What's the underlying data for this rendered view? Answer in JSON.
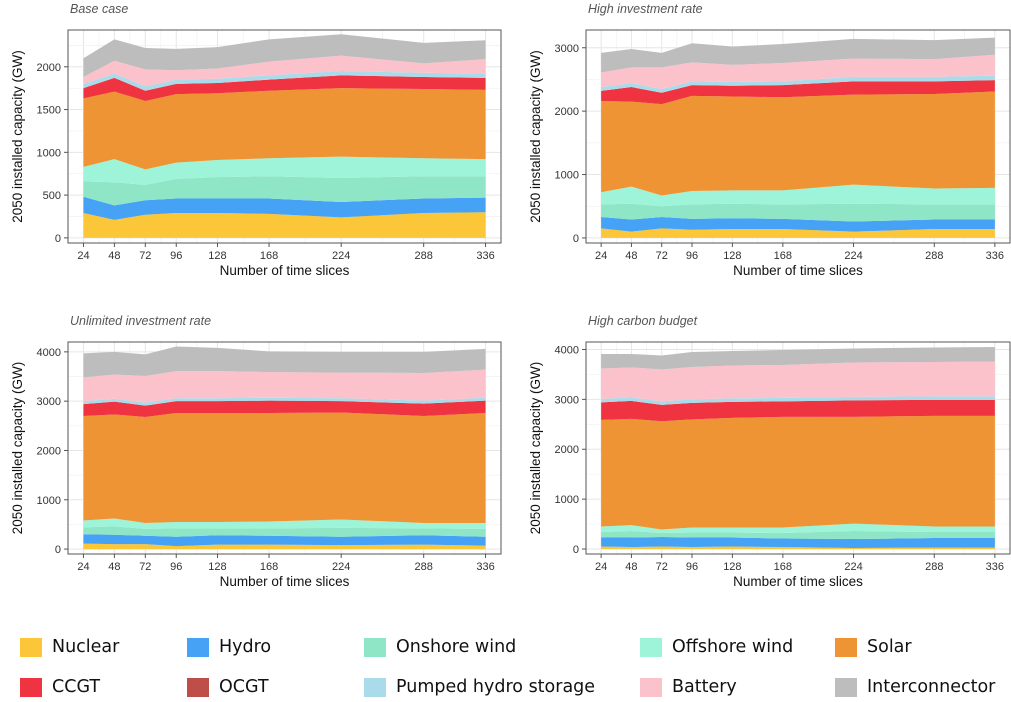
{
  "series_names": [
    "Nuclear",
    "Hydro",
    "Onshore wind",
    "Offshore wind",
    "Solar",
    "CCGT",
    "OCGT",
    "Pumped hydro storage",
    "Battery",
    "Interconnector"
  ],
  "series_colors": [
    "#fbc638",
    "#45a2f5",
    "#8ee6c6",
    "#9df4d8",
    "#ef9434",
    "#ef3340",
    "#bd4e4a",
    "#a9dbea",
    "#fbc2cb",
    "#bdbdbd"
  ],
  "legend": {
    "items": [
      {
        "label": "Nuclear",
        "color": "#fbc638"
      },
      {
        "label": "Hydro",
        "color": "#45a2f5"
      },
      {
        "label": "Onshore wind",
        "color": "#8ee6c6"
      },
      {
        "label": "Offshore wind",
        "color": "#9df4d8"
      },
      {
        "label": "Solar",
        "color": "#ef9434"
      },
      {
        "label": "CCGT",
        "color": "#ef3340"
      },
      {
        "label": "OCGT",
        "color": "#bd4e4a"
      },
      {
        "label": "Pumped hydro storage",
        "color": "#a9dbea"
      },
      {
        "label": "Battery",
        "color": "#fbc2cb"
      },
      {
        "label": "Interconnector",
        "color": "#bdbdbd"
      }
    ]
  },
  "chart_data": [
    {
      "type": "area",
      "title": "Base case",
      "xlabel": "Number of time slices",
      "ylabel": "2050 installed capacity (GW)",
      "x": [
        24,
        48,
        72,
        96,
        128,
        168,
        224,
        288,
        336
      ],
      "xticks": [
        24,
        48,
        72,
        96,
        128,
        168,
        224,
        288,
        336
      ],
      "yticks": [
        0,
        500,
        1000,
        1500,
        2000
      ],
      "ylim": [
        -60,
        2430
      ],
      "grid": true,
      "series": [
        {
          "name": "Nuclear",
          "values": [
            290,
            210,
            270,
            290,
            290,
            280,
            240,
            290,
            300
          ]
        },
        {
          "name": "Hydro",
          "values": [
            190,
            170,
            170,
            170,
            170,
            180,
            180,
            170,
            170
          ]
        },
        {
          "name": "Onshore wind",
          "values": [
            180,
            270,
            180,
            230,
            250,
            260,
            280,
            260,
            250
          ]
        },
        {
          "name": "Offshore wind",
          "values": [
            170,
            270,
            180,
            190,
            200,
            210,
            250,
            210,
            200
          ]
        },
        {
          "name": "Solar",
          "values": [
            800,
            790,
            800,
            800,
            780,
            790,
            800,
            810,
            810
          ]
        },
        {
          "name": "CCGT",
          "values": [
            120,
            160,
            120,
            120,
            120,
            130,
            150,
            140,
            140
          ]
        },
        {
          "name": "OCGT",
          "values": [
            0,
            0,
            0,
            0,
            0,
            0,
            0,
            0,
            0
          ]
        },
        {
          "name": "Pumped hydro storage",
          "values": [
            50,
            50,
            50,
            50,
            50,
            50,
            50,
            50,
            50
          ]
        },
        {
          "name": "Battery",
          "values": [
            80,
            150,
            200,
            110,
            120,
            160,
            180,
            110,
            170
          ]
        },
        {
          "name": "Interconnector",
          "values": [
            220,
            250,
            250,
            250,
            250,
            260,
            250,
            240,
            220
          ]
        }
      ]
    },
    {
      "type": "area",
      "title": "High investment rate",
      "xlabel": "Number of time slices",
      "ylabel": "2050 installed capacity (GW)",
      "x": [
        24,
        48,
        72,
        96,
        128,
        168,
        224,
        288,
        336
      ],
      "xticks": [
        24,
        48,
        72,
        96,
        128,
        168,
        224,
        288,
        336
      ],
      "yticks": [
        0,
        1000,
        2000,
        3000
      ],
      "ylim": [
        -80,
        3280
      ],
      "grid": true,
      "series": [
        {
          "name": "Nuclear",
          "values": [
            150,
            100,
            150,
            130,
            140,
            140,
            100,
            140,
            140
          ]
        },
        {
          "name": "Hydro",
          "values": [
            180,
            190,
            180,
            170,
            170,
            160,
            160,
            150,
            150
          ]
        },
        {
          "name": "Onshore wind",
          "values": [
            200,
            250,
            170,
            230,
            230,
            230,
            280,
            240,
            240
          ]
        },
        {
          "name": "Offshore wind",
          "values": [
            190,
            270,
            170,
            210,
            210,
            220,
            300,
            250,
            260
          ]
        },
        {
          "name": "Solar",
          "values": [
            1440,
            1340,
            1440,
            1500,
            1480,
            1470,
            1420,
            1490,
            1520
          ]
        },
        {
          "name": "CCGT",
          "values": [
            160,
            230,
            180,
            170,
            170,
            190,
            210,
            200,
            180
          ]
        },
        {
          "name": "OCGT",
          "values": [
            0,
            0,
            0,
            0,
            0,
            0,
            0,
            0,
            0
          ]
        },
        {
          "name": "Pumped hydro storage",
          "values": [
            60,
            60,
            60,
            60,
            60,
            60,
            70,
            70,
            70
          ]
        },
        {
          "name": "Battery",
          "values": [
            230,
            250,
            340,
            300,
            270,
            290,
            290,
            280,
            330
          ]
        },
        {
          "name": "Interconnector",
          "values": [
            310,
            290,
            230,
            300,
            290,
            300,
            310,
            300,
            270
          ]
        }
      ]
    },
    {
      "type": "area",
      "title": "Unlimited investment rate",
      "xlabel": "Number of time slices",
      "ylabel": "2050 installed capacity (GW)",
      "x": [
        24,
        48,
        72,
        96,
        128,
        168,
        224,
        288,
        336
      ],
      "xticks": [
        24,
        48,
        72,
        96,
        128,
        168,
        224,
        288,
        336
      ],
      "yticks": [
        0,
        1000,
        2000,
        3000,
        4000
      ],
      "ylim": [
        -100,
        4200
      ],
      "grid": true,
      "series": [
        {
          "name": "Nuclear",
          "values": [
            110,
            100,
            100,
            60,
            90,
            90,
            80,
            90,
            70
          ]
        },
        {
          "name": "Hydro",
          "values": [
            190,
            190,
            170,
            190,
            190,
            180,
            170,
            190,
            180
          ]
        },
        {
          "name": "Onshore wind",
          "values": [
            140,
            170,
            140,
            170,
            140,
            150,
            180,
            140,
            160
          ]
        },
        {
          "name": "Offshore wind",
          "values": [
            140,
            160,
            120,
            130,
            130,
            140,
            170,
            110,
            120
          ]
        },
        {
          "name": "Solar",
          "values": [
            2120,
            2110,
            2150,
            2210,
            2210,
            2200,
            2170,
            2170,
            2230
          ]
        },
        {
          "name": "CCGT",
          "values": [
            240,
            260,
            230,
            240,
            240,
            250,
            230,
            250,
            250
          ]
        },
        {
          "name": "OCGT",
          "values": [
            0,
            0,
            0,
            0,
            0,
            0,
            0,
            0,
            0
          ]
        },
        {
          "name": "Pumped hydro storage",
          "values": [
            60,
            60,
            60,
            60,
            60,
            60,
            60,
            60,
            60
          ]
        },
        {
          "name": "Battery",
          "values": [
            480,
            490,
            540,
            550,
            550,
            520,
            520,
            560,
            570
          ]
        },
        {
          "name": "Interconnector",
          "values": [
            490,
            460,
            440,
            500,
            470,
            420,
            420,
            430,
            420
          ]
        }
      ]
    },
    {
      "type": "area",
      "title": "High carbon budget",
      "xlabel": "Number of time slices",
      "ylabel": "2050 installed capacity (GW)",
      "x": [
        24,
        48,
        72,
        96,
        128,
        168,
        224,
        288,
        336
      ],
      "xticks": [
        24,
        48,
        72,
        96,
        128,
        168,
        224,
        288,
        336
      ],
      "yticks": [
        0,
        1000,
        2000,
        3000,
        4000
      ],
      "ylim": [
        -100,
        4150
      ],
      "grid": true,
      "series": [
        {
          "name": "Nuclear",
          "values": [
            50,
            40,
            50,
            40,
            50,
            40,
            20,
            30,
            30
          ]
        },
        {
          "name": "Hydro",
          "values": [
            180,
            190,
            190,
            190,
            180,
            170,
            180,
            190,
            190
          ]
        },
        {
          "name": "Onshore wind",
          "values": [
            110,
            130,
            80,
            100,
            100,
            110,
            160,
            120,
            120
          ]
        },
        {
          "name": "Offshore wind",
          "values": [
            110,
            120,
            70,
            100,
            100,
            110,
            150,
            110,
            110
          ]
        },
        {
          "name": "Solar",
          "values": [
            2140,
            2130,
            2170,
            2170,
            2200,
            2220,
            2140,
            2220,
            2220
          ]
        },
        {
          "name": "CCGT",
          "values": [
            350,
            360,
            330,
            330,
            320,
            310,
            330,
            320,
            320
          ]
        },
        {
          "name": "OCGT",
          "values": [
            0,
            0,
            0,
            0,
            0,
            0,
            0,
            0,
            0
          ]
        },
        {
          "name": "Pumped hydro storage",
          "values": [
            70,
            70,
            70,
            70,
            70,
            70,
            70,
            70,
            70
          ]
        },
        {
          "name": "Battery",
          "values": [
            610,
            600,
            640,
            650,
            660,
            660,
            690,
            690,
            700
          ]
        },
        {
          "name": "Interconnector",
          "values": [
            290,
            270,
            280,
            300,
            290,
            300,
            280,
            290,
            290
          ]
        }
      ]
    }
  ]
}
